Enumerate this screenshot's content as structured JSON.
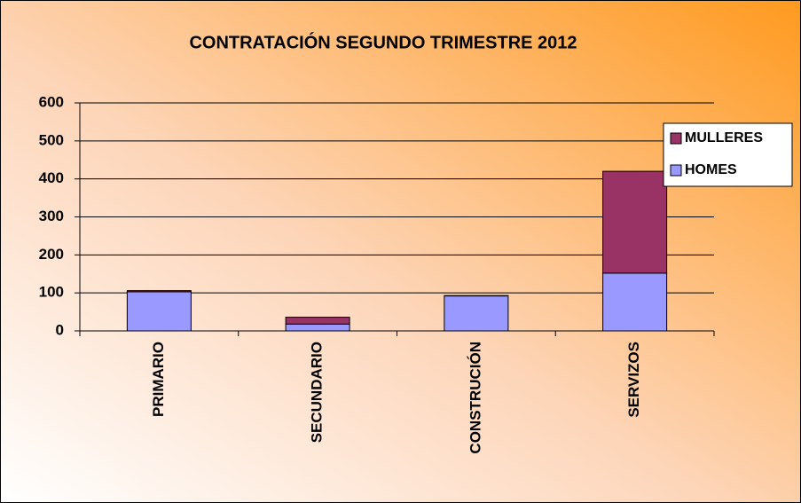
{
  "chart_data": {
    "type": "stacked_bar",
    "title": "CONTRATACIÓN SEGUNDO TRIMESTRE 2012",
    "categories": [
      "PRIMARIO",
      "SECUNDARIO",
      "CONSTRUCIÓN",
      "SERVIZOS"
    ],
    "series": [
      {
        "name": "HOMES",
        "color": "#9999ff",
        "values": [
          103,
          18,
          92,
          152
        ]
      },
      {
        "name": "MULLERES",
        "color": "#993366",
        "values": [
          3,
          18,
          1,
          268
        ]
      }
    ],
    "ylim": [
      0,
      600
    ],
    "yticks": [
      0,
      100,
      200,
      300,
      400,
      500,
      600
    ],
    "grid": true,
    "legend": "right"
  }
}
